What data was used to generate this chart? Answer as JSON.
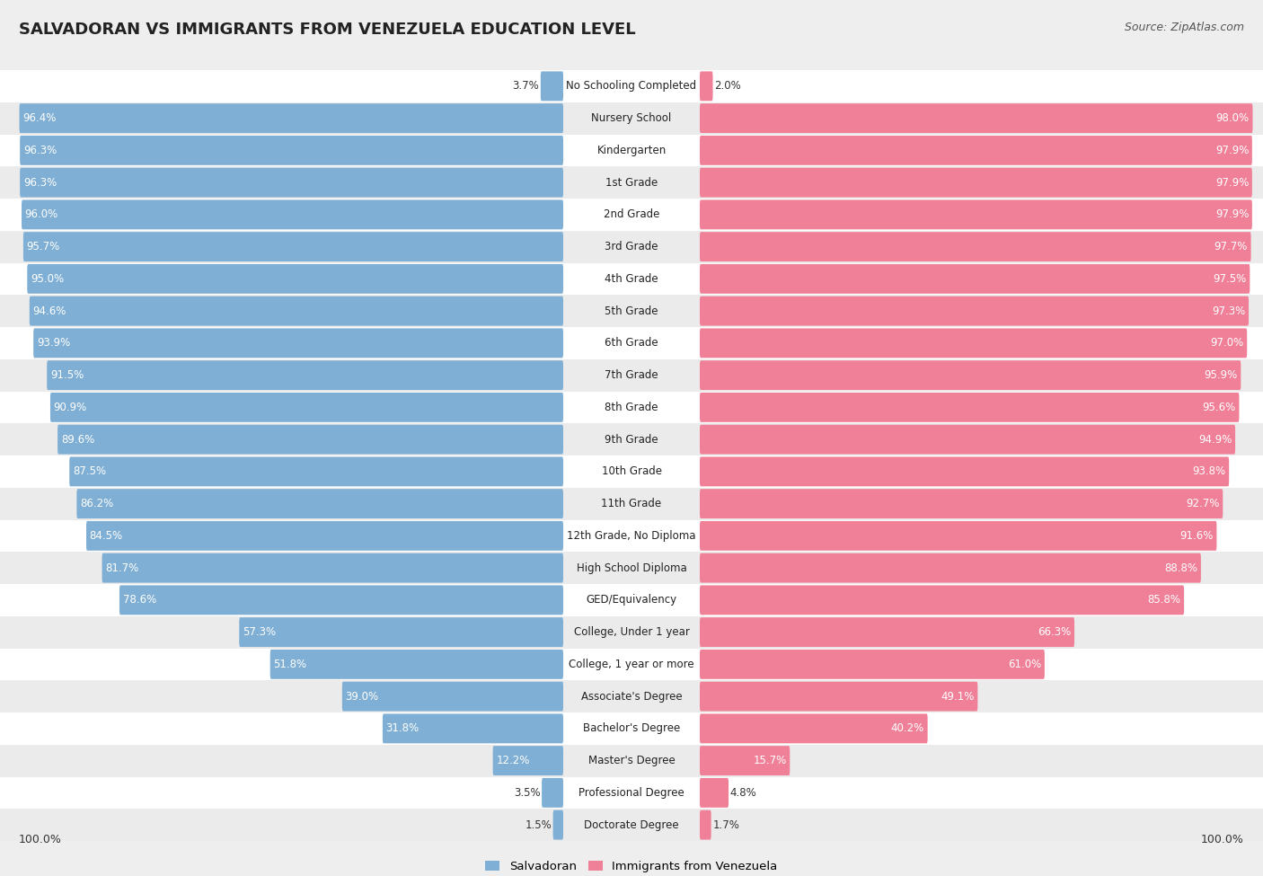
{
  "title": "SALVADORAN VS IMMIGRANTS FROM VENEZUELA EDUCATION LEVEL",
  "source": "Source: ZipAtlas.com",
  "categories": [
    "No Schooling Completed",
    "Nursery School",
    "Kindergarten",
    "1st Grade",
    "2nd Grade",
    "3rd Grade",
    "4th Grade",
    "5th Grade",
    "6th Grade",
    "7th Grade",
    "8th Grade",
    "9th Grade",
    "10th Grade",
    "11th Grade",
    "12th Grade, No Diploma",
    "High School Diploma",
    "GED/Equivalency",
    "College, Under 1 year",
    "College, 1 year or more",
    "Associate's Degree",
    "Bachelor's Degree",
    "Master's Degree",
    "Professional Degree",
    "Doctorate Degree"
  ],
  "salvadoran": [
    3.7,
    96.4,
    96.3,
    96.3,
    96.0,
    95.7,
    95.0,
    94.6,
    93.9,
    91.5,
    90.9,
    89.6,
    87.5,
    86.2,
    84.5,
    81.7,
    78.6,
    57.3,
    51.8,
    39.0,
    31.8,
    12.2,
    3.5,
    1.5
  ],
  "venezuela": [
    2.0,
    98.0,
    97.9,
    97.9,
    97.9,
    97.7,
    97.5,
    97.3,
    97.0,
    95.9,
    95.6,
    94.9,
    93.8,
    92.7,
    91.6,
    88.8,
    85.8,
    66.3,
    61.0,
    49.1,
    40.2,
    15.7,
    4.8,
    1.7
  ],
  "blue_color": "#7fafd4",
  "pink_color": "#f08098",
  "bg_color": "#eeeeee",
  "title_fontsize": 13,
  "source_fontsize": 9,
  "label_fontsize": 8.5,
  "value_fontsize": 8.5
}
